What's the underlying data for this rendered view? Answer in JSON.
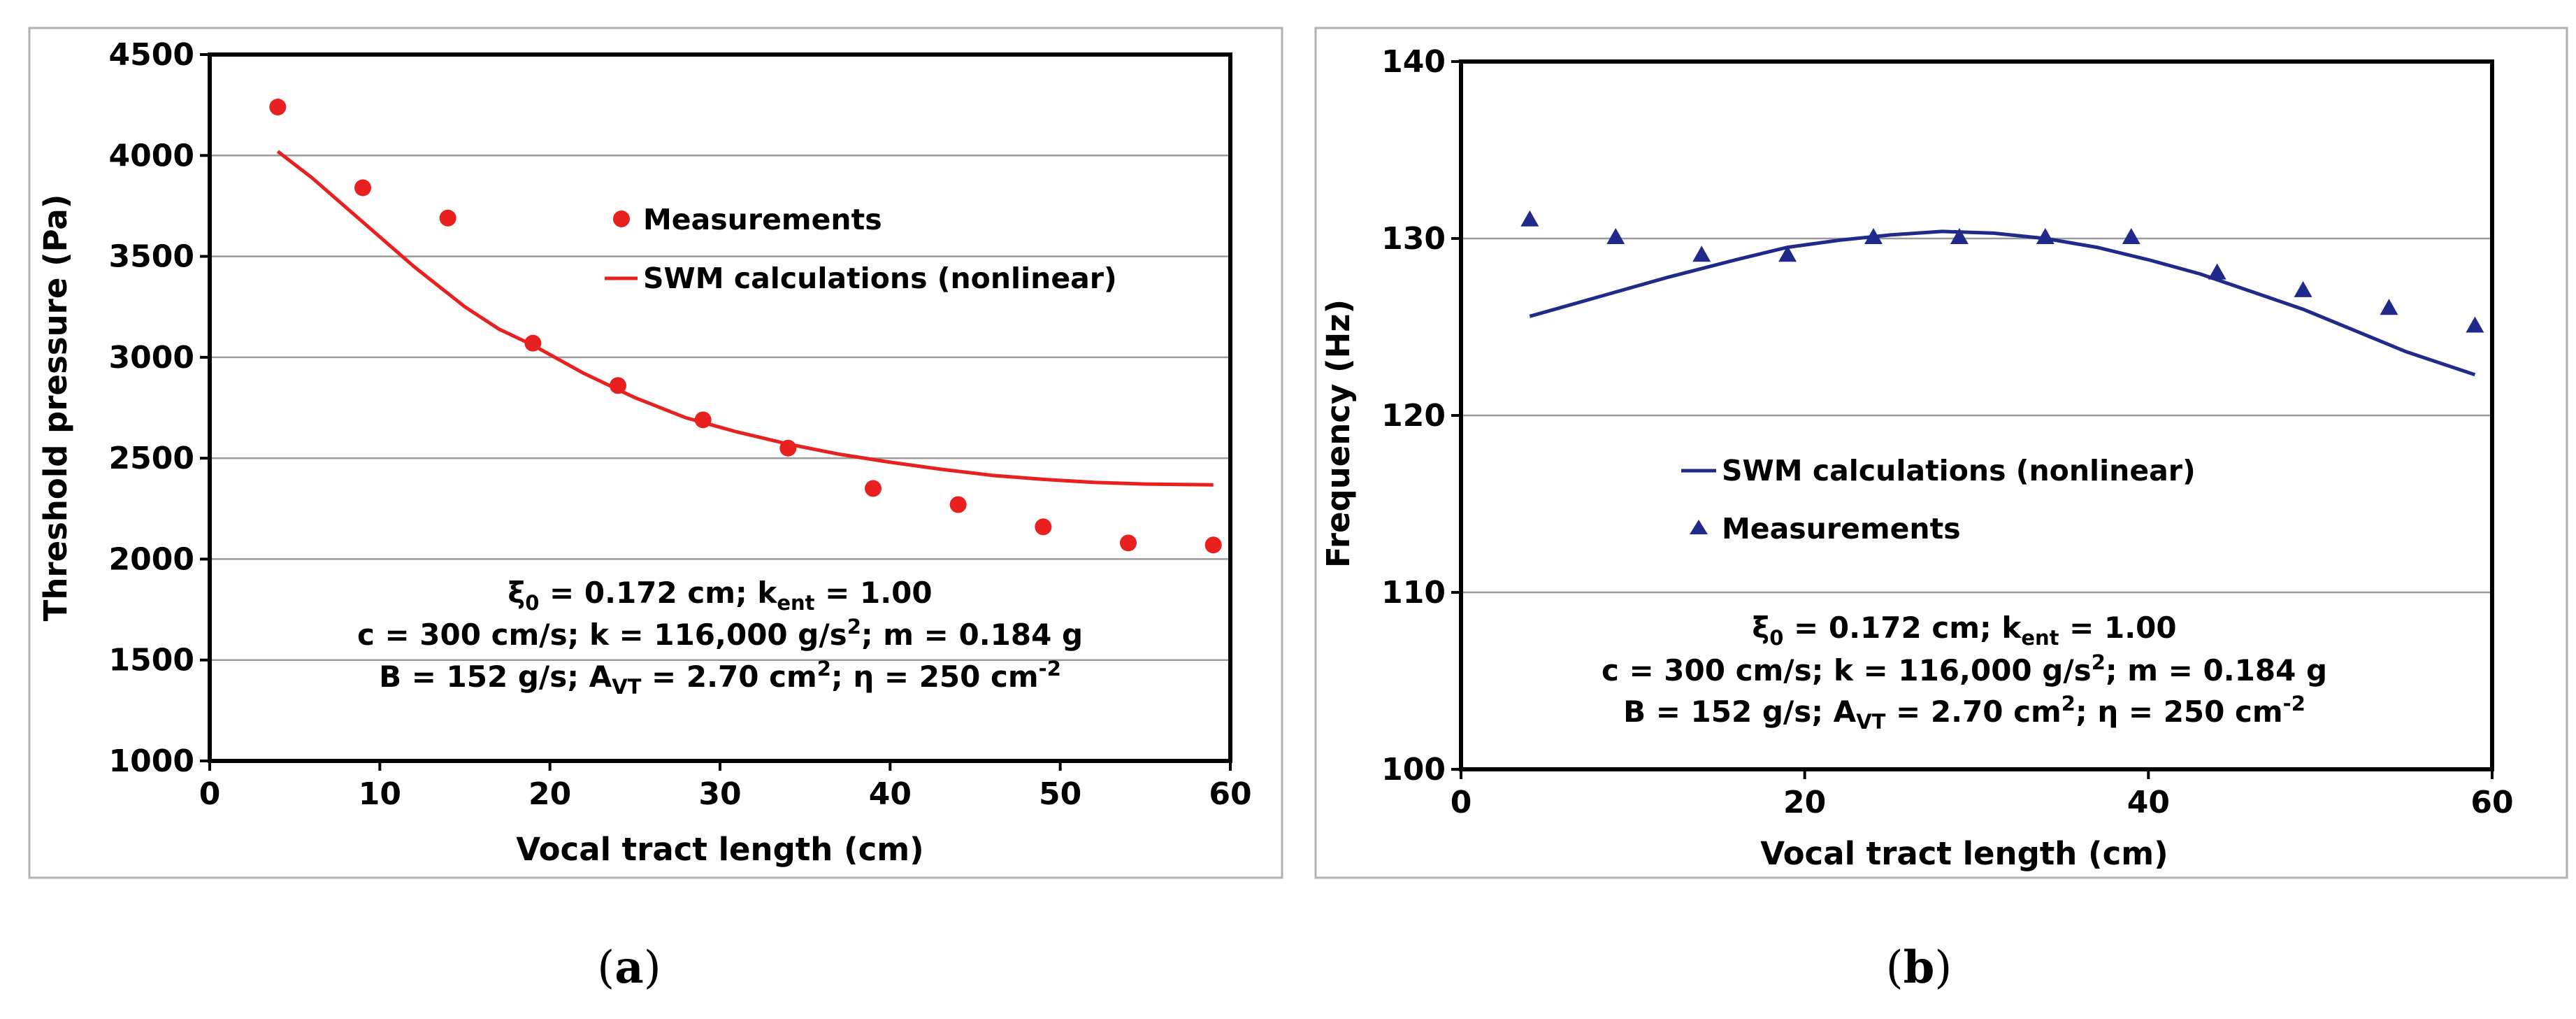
{
  "chart_data": [
    {
      "type": "scatter",
      "panel_label": "a",
      "xlabel": "Vocal tract length (cm)",
      "ylabel": "Threshold pressure (Pa)",
      "xlim": [
        0,
        60
      ],
      "ylim": [
        1000,
        4500
      ],
      "xticks": [
        0,
        10,
        20,
        30,
        40,
        50,
        60
      ],
      "yticks": [
        1000,
        1500,
        2000,
        2500,
        3000,
        3500,
        4000,
        4500
      ],
      "grid": "horizontal",
      "legend_position": "top-right",
      "series": [
        {
          "name": "Measurements",
          "kind": "scatter",
          "marker": "circle",
          "color": "#e8201f",
          "x": [
            4,
            9,
            14,
            19,
            24,
            29,
            34,
            39,
            44,
            49,
            54,
            59
          ],
          "y": [
            4240,
            3840,
            3690,
            3070,
            2860,
            2690,
            2550,
            2350,
            2270,
            2160,
            2080,
            2070
          ]
        },
        {
          "name": "SWM calculations (nonlinear)",
          "kind": "line",
          "color": "#e8201f",
          "x": [
            4,
            6,
            9,
            12,
            15,
            17,
            19,
            22,
            25,
            28,
            31,
            34,
            37,
            40,
            43,
            46,
            49,
            52,
            55,
            59
          ],
          "y": [
            4020,
            3890,
            3670,
            3450,
            3250,
            3140,
            3060,
            2920,
            2800,
            2700,
            2630,
            2570,
            2520,
            2480,
            2445,
            2415,
            2395,
            2380,
            2372,
            2368
          ]
        }
      ],
      "annotation": {
        "line1": {
          "xi": "ξ",
          "xi_sub": "0",
          "p1": " = 0.172 cm; k",
          "k_sub": "ent",
          "p2": " = 1.00"
        },
        "line2": {
          "p1": "c = 300 cm/s;  k = 116,000 g/s",
          "sup": "2",
          "p2": "; m = 0.184 g"
        },
        "line3": {
          "p1": "B = 152 g/s; A",
          "a_sub": "VT",
          "p2": " = 2.70 cm",
          "sup": "2",
          "p3": "; η = 250 cm",
          "sup2": "-2"
        }
      }
    },
    {
      "type": "scatter",
      "panel_label": "b",
      "xlabel": "Vocal tract length (cm)",
      "ylabel": "Frequency (Hz)",
      "xlim": [
        0,
        60
      ],
      "ylim": [
        100,
        140
      ],
      "xticks": [
        0,
        20,
        40,
        60
      ],
      "yticks": [
        100,
        110,
        120,
        130,
        140
      ],
      "grid": "horizontal",
      "legend_position": "center-left",
      "series": [
        {
          "name": "SWM calculations (nonlinear)",
          "kind": "line",
          "color": "#1f2a8a",
          "x": [
            4,
            8,
            12,
            16,
            19,
            22,
            25,
            28,
            31,
            34,
            37,
            40,
            43,
            46,
            49,
            52,
            55,
            59
          ],
          "y": [
            125.6,
            126.7,
            127.8,
            128.8,
            129.5,
            129.9,
            130.2,
            130.4,
            130.3,
            130.0,
            129.5,
            128.8,
            128.0,
            127.0,
            126.0,
            124.8,
            123.6,
            122.3
          ]
        },
        {
          "name": "Measurements",
          "kind": "scatter",
          "marker": "triangle",
          "color": "#1f2a8a",
          "x": [
            4,
            9,
            14,
            19,
            24,
            29,
            34,
            39,
            44,
            49,
            54,
            59
          ],
          "y": [
            131,
            130,
            129,
            129,
            130,
            130,
            130,
            130,
            128,
            127,
            126,
            125
          ]
        }
      ],
      "annotation": {
        "line1": {
          "xi": "ξ",
          "xi_sub": "0",
          "p1": " = 0.172 cm; k",
          "k_sub": "ent",
          "p2": " = 1.00"
        },
        "line2": {
          "p1": "c = 300 cm/s;  k = 116,000 g/s",
          "sup": "2",
          "p2": "; m = 0.184 g"
        },
        "line3": {
          "p1": "B = 152 g/s; A",
          "a_sub": "VT",
          "p2": " = 2.70 cm",
          "sup": "2",
          "p3": "; η = 250 cm",
          "sup2": "-2"
        }
      }
    }
  ]
}
